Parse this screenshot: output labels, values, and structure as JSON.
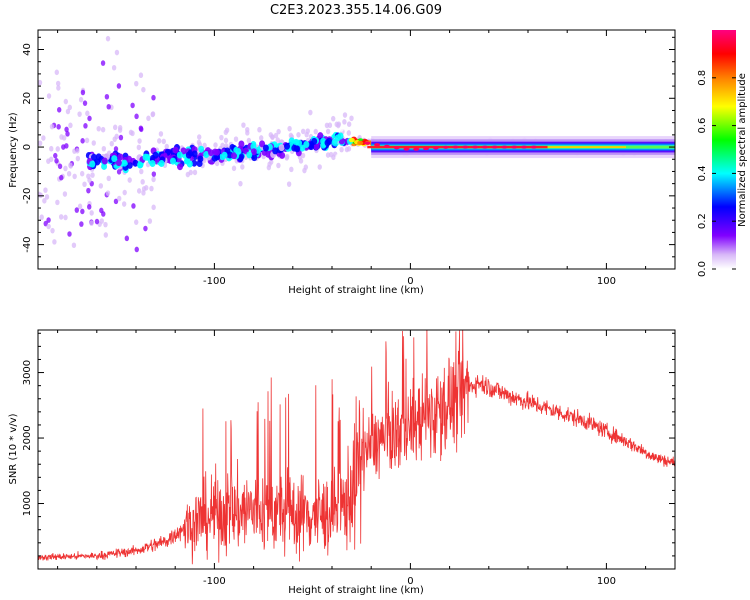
{
  "title": "C2E3.2023.355.14.06.G09",
  "chart_data": [
    {
      "type": "heatmap",
      "xlabel": "Height of straight line (km)",
      "ylabel": "Frequency (Hz)",
      "xlim": [
        -190,
        135
      ],
      "ylim": [
        -50,
        48
      ],
      "xticks": [
        -100,
        0,
        100
      ],
      "yticks": [
        -40,
        -20,
        0,
        20,
        40
      ],
      "colorbar": {
        "label": "Normalized spectral amplitude",
        "range": [
          0,
          1
        ],
        "ticks": [
          "0.0",
          "0.2",
          "0.4",
          "0.6",
          "0.8"
        ],
        "colormap": [
          "#ffffff",
          "#d8b8f8",
          "#8000ff",
          "#0000ff",
          "#00ffff",
          "#00ff00",
          "#ffff00",
          "#ff8000",
          "#ff0000",
          "#ff0080"
        ]
      },
      "ridge": [
        {
          "x": -150,
          "freq": -6
        },
        {
          "x": -100,
          "freq": -3
        },
        {
          "x": -60,
          "freq": 0
        },
        {
          "x": -40,
          "freq": 3
        },
        {
          "x": -25,
          "freq": 2
        },
        {
          "x": -10,
          "freq": 0
        },
        {
          "x": 0,
          "freq": -1
        },
        {
          "x": 20,
          "freq": 0
        },
        {
          "x": 135,
          "freq": 0
        }
      ]
    },
    {
      "type": "line",
      "xlabel": "Height of straight line (km)",
      "ylabel": "SNR (10 * v/v)",
      "xlim": [
        -190,
        135
      ],
      "ylim": [
        0,
        3650
      ],
      "xticks": [
        -100,
        0,
        100
      ],
      "yticks": [
        1000,
        2000,
        3000
      ],
      "color": "#ee3333",
      "envelope": [
        {
          "x": -190,
          "y": 180
        },
        {
          "x": -160,
          "y": 200
        },
        {
          "x": -140,
          "y": 280
        },
        {
          "x": -125,
          "y": 420
        },
        {
          "x": -115,
          "y": 650
        },
        {
          "x": -100,
          "y": 850
        },
        {
          "x": -80,
          "y": 900
        },
        {
          "x": -60,
          "y": 850
        },
        {
          "x": -45,
          "y": 820
        },
        {
          "x": -35,
          "y": 900
        },
        {
          "x": -30,
          "y": 1200
        },
        {
          "x": -25,
          "y": 1700
        },
        {
          "x": -20,
          "y": 1900
        },
        {
          "x": -10,
          "y": 2050
        },
        {
          "x": 0,
          "y": 2200
        },
        {
          "x": 10,
          "y": 2350
        },
        {
          "x": 20,
          "y": 2550
        },
        {
          "x": 30,
          "y": 2780
        },
        {
          "x": 35,
          "y": 2850
        },
        {
          "x": 50,
          "y": 2650
        },
        {
          "x": 70,
          "y": 2450
        },
        {
          "x": 90,
          "y": 2250
        },
        {
          "x": 110,
          "y": 1950
        },
        {
          "x": 125,
          "y": 1700
        },
        {
          "x": 135,
          "y": 1620
        }
      ]
    }
  ]
}
